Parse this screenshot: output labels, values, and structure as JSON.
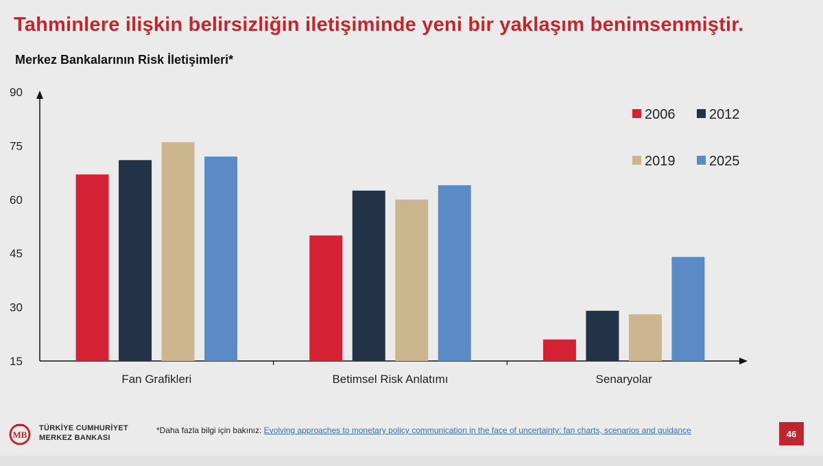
{
  "slide": {
    "headline": "Tahminlere ilişkin belirsizliğin iletişiminde yeni bir yaklaşım benimsenmiştir.",
    "page_number": "46",
    "colors": {
      "accent": "#c0262d",
      "link": "#3b6ea8"
    }
  },
  "chart_data": {
    "type": "bar",
    "title": "Merkez Bankalarının Risk İletişimleri*",
    "xlabel": "",
    "ylabel": "",
    "categories": [
      "Fan Grafikleri",
      "Betimsel Risk Anlatımı",
      "Senaryolar"
    ],
    "series": [
      {
        "name": "2006",
        "color": "#d42136",
        "values": [
          67,
          50,
          21
        ]
      },
      {
        "name": "2012",
        "color": "#233347",
        "values": [
          71,
          62.5,
          29
        ]
      },
      {
        "name": "2019",
        "color": "#cbb68f",
        "values": [
          76,
          60,
          28
        ]
      },
      {
        "name": "2025",
        "color": "#5b8bc5",
        "values": [
          72,
          64,
          44
        ]
      }
    ],
    "ylim": [
      15,
      90
    ],
    "yticks": [
      "15",
      "30",
      "45",
      "60",
      "75",
      "90"
    ],
    "grid": false,
    "legend_position": "top-right"
  },
  "footer": {
    "logo_line1": "TÜRKİYE CUMHURİYET",
    "logo_line2": "MERKEZ BANKASI",
    "note_prefix": "*Daha fazla bilgi için bakınız: ",
    "note_link": "Evolving approaches to monetary policy communication in the face of uncertainty: fan charts, scenarios and guidance"
  }
}
